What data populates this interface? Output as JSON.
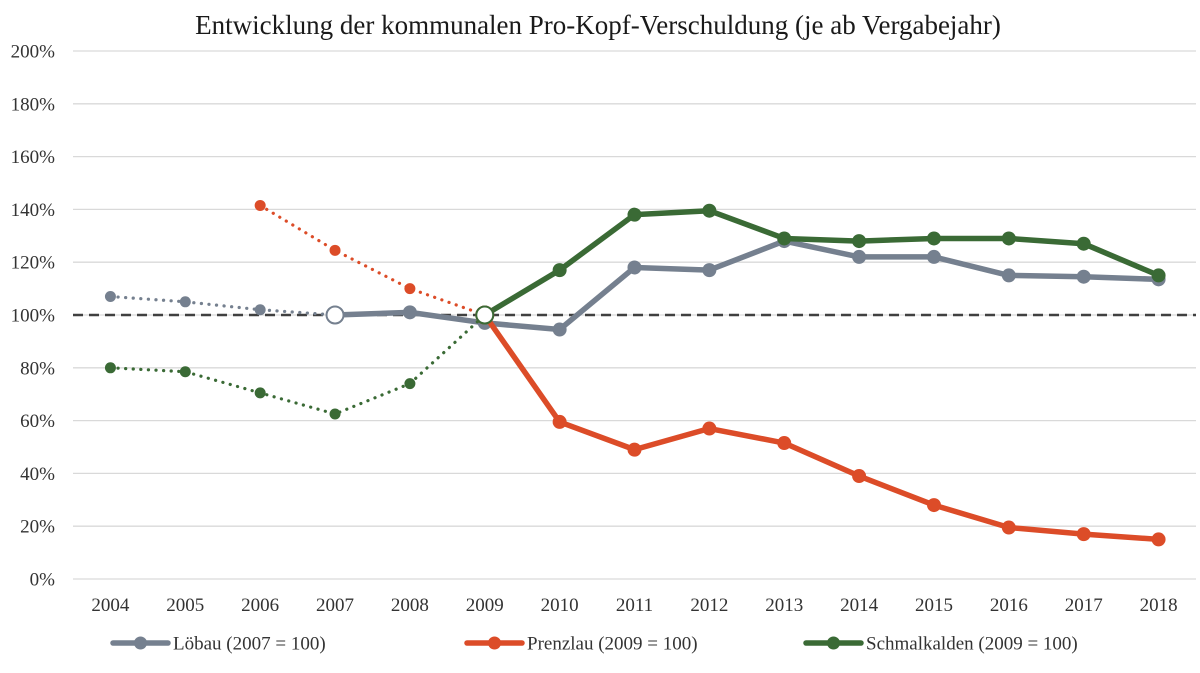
{
  "chart_data": {
    "type": "line",
    "title": "Entwicklung der kommunalen Pro-Kopf-Verschuldung (je ab Vergabejahr)",
    "xlabel": "",
    "ylabel": "",
    "ylim": [
      0,
      200
    ],
    "yticks": [
      "0%",
      "20%",
      "40%",
      "60%",
      "80%",
      "100%",
      "120%",
      "140%",
      "160%",
      "180%",
      "200%"
    ],
    "y_tick_values": [
      0,
      20,
      40,
      60,
      80,
      100,
      120,
      140,
      160,
      180,
      200
    ],
    "x": [
      "2004",
      "2005",
      "2006",
      "2007",
      "2008",
      "2009",
      "2010",
      "2011",
      "2012",
      "2013",
      "2014",
      "2015",
      "2016",
      "2017",
      "2018"
    ],
    "grid": true,
    "legend_position": "bottom",
    "reference_line": 100,
    "series": [
      {
        "name": "Löbau (2007 = 100)",
        "color": "#75808f",
        "base_year": "2007",
        "values": [
          107,
          105,
          102,
          100,
          101,
          97,
          94.5,
          118,
          117,
          128,
          122,
          122,
          115,
          114.5,
          113.5
        ]
      },
      {
        "name": "Prenzlau (2009 = 100)",
        "color": "#dc4c28",
        "base_year": "2009",
        "values": [
          null,
          null,
          141.5,
          124.5,
          110,
          100,
          59.5,
          49,
          57,
          51.5,
          39,
          28,
          19.5,
          17,
          15
        ]
      },
      {
        "name": "Schmalkalden (2009 = 100)",
        "color": "#3a6a35",
        "base_year": "2009",
        "values": [
          80,
          78.5,
          70.5,
          62.5,
          74,
          100,
          117,
          138,
          139.5,
          129,
          128,
          129,
          129,
          127,
          115
        ]
      }
    ]
  }
}
